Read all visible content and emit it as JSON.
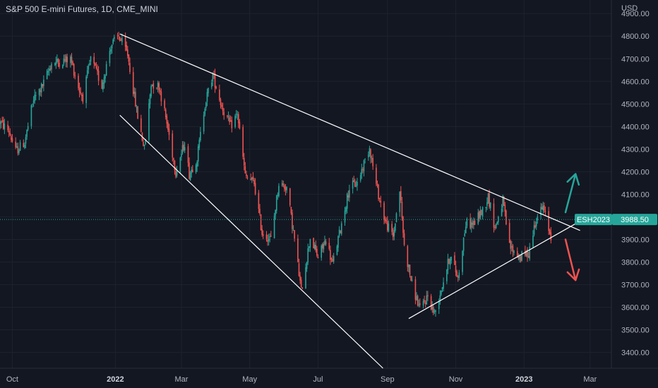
{
  "header": {
    "title": "S&P 500 E-mini Futures, 1D, CME_MINI"
  },
  "chart_data": {
    "type": "candlestick",
    "currency_label": "USD",
    "price_axis": {
      "ylim": [
        3330,
        4960
      ],
      "ticks": [
        "4900.00",
        "4800.00",
        "4700.00",
        "4600.00",
        "4500.00",
        "4400.00",
        "4300.00",
        "4200.00",
        "4100.00",
        "4000.00",
        "3900.00",
        "3800.00",
        "3700.00",
        "3600.00",
        "3500.00",
        "3400.00"
      ],
      "tick_values": [
        4900,
        4800,
        4700,
        4600,
        4500,
        4400,
        4300,
        4200,
        4100,
        4000,
        3900,
        3800,
        3700,
        3600,
        3500,
        3400
      ]
    },
    "time_axis": {
      "xlim": [
        "2021-09-20",
        "2023-03-20"
      ],
      "ticks": [
        {
          "label": "Oct",
          "date": "2021-10-01",
          "bold": false
        },
        {
          "label": "2022",
          "date": "2022-01-01",
          "bold": true
        },
        {
          "label": "Mar",
          "date": "2022-03-01",
          "bold": false
        },
        {
          "label": "May",
          "date": "2022-05-01",
          "bold": false
        },
        {
          "label": "Jul",
          "date": "2022-07-01",
          "bold": false
        },
        {
          "label": "Sep",
          "date": "2022-09-01",
          "bold": false
        },
        {
          "label": "Nov",
          "date": "2022-11-01",
          "bold": false
        },
        {
          "label": "2023",
          "date": "2023-01-01",
          "bold": true
        },
        {
          "label": "Mar",
          "date": "2023-03-01",
          "bold": false
        }
      ]
    },
    "price_series": [
      [
        "2021-09-20",
        4420
      ],
      [
        "2021-09-28",
        4380
      ],
      [
        "2021-10-04",
        4290
      ],
      [
        "2021-10-12",
        4330
      ],
      [
        "2021-10-20",
        4520
      ],
      [
        "2021-10-28",
        4580
      ],
      [
        "2021-11-05",
        4680
      ],
      [
        "2021-11-15",
        4690
      ],
      [
        "2021-11-22",
        4700
      ],
      [
        "2021-11-30",
        4560
      ],
      [
        "2021-12-03",
        4530
      ],
      [
        "2021-12-10",
        4700
      ],
      [
        "2021-12-20",
        4580
      ],
      [
        "2021-12-28",
        4760
      ],
      [
        "2022-01-04",
        4800
      ],
      [
        "2022-01-12",
        4720
      ],
      [
        "2022-01-20",
        4470
      ],
      [
        "2022-01-27",
        4300
      ],
      [
        "2022-02-02",
        4590
      ],
      [
        "2022-02-09",
        4580
      ],
      [
        "2022-02-15",
        4440
      ],
      [
        "2022-02-24",
        4200
      ],
      [
        "2022-03-04",
        4330
      ],
      [
        "2022-03-08",
        4190
      ],
      [
        "2022-03-15",
        4260
      ],
      [
        "2022-03-22",
        4500
      ],
      [
        "2022-03-29",
        4630
      ],
      [
        "2022-04-06",
        4490
      ],
      [
        "2022-04-14",
        4400
      ],
      [
        "2022-04-20",
        4460
      ],
      [
        "2022-04-27",
        4180
      ],
      [
        "2022-05-05",
        4150
      ],
      [
        "2022-05-12",
        3930
      ],
      [
        "2022-05-20",
        3900
      ],
      [
        "2022-05-27",
        4150
      ],
      [
        "2022-06-03",
        4130
      ],
      [
        "2022-06-10",
        3900
      ],
      [
        "2022-06-16",
        3670
      ],
      [
        "2022-06-24",
        3910
      ],
      [
        "2022-07-01",
        3820
      ],
      [
        "2022-07-08",
        3900
      ],
      [
        "2022-07-14",
        3790
      ],
      [
        "2022-07-22",
        3970
      ],
      [
        "2022-07-29",
        4130
      ],
      [
        "2022-08-05",
        4150
      ],
      [
        "2022-08-16",
        4310
      ],
      [
        "2022-08-22",
        4140
      ],
      [
        "2022-08-30",
        3980
      ],
      [
        "2022-09-06",
        3910
      ],
      [
        "2022-09-12",
        4120
      ],
      [
        "2022-09-16",
        3870
      ],
      [
        "2022-09-23",
        3700
      ],
      [
        "2022-09-30",
        3590
      ],
      [
        "2022-10-07",
        3650
      ],
      [
        "2022-10-13",
        3570
      ],
      [
        "2022-10-20",
        3700
      ],
      [
        "2022-10-27",
        3830
      ],
      [
        "2022-11-03",
        3730
      ],
      [
        "2022-11-10",
        3970
      ],
      [
        "2022-11-17",
        3970
      ],
      [
        "2022-11-25",
        4030
      ],
      [
        "2022-11-30",
        4090
      ],
      [
        "2022-12-06",
        3950
      ],
      [
        "2022-12-13",
        4070
      ],
      [
        "2022-12-19",
        3870
      ],
      [
        "2022-12-28",
        3820
      ],
      [
        "2023-01-05",
        3840
      ],
      [
        "2023-01-12",
        4000
      ],
      [
        "2023-01-18",
        4040
      ],
      [
        "2023-01-25",
        3910
      ]
    ],
    "last_price": {
      "symbol": "ESH2023",
      "value": 3988.5,
      "label": "3988.50"
    },
    "trendlines": [
      {
        "from": [
          "2022-01-05",
          4810
        ],
        "to": [
          "2023-02-20",
          3940
        ]
      },
      {
        "from": [
          "2022-01-05",
          4450
        ],
        "to": [
          "2022-08-28",
          3330
        ]
      },
      {
        "from": [
          "2022-09-20",
          3550
        ],
        "to": [
          "2023-02-16",
          3970
        ]
      }
    ],
    "arrows": [
      {
        "direction": "up",
        "color": "#26a69a",
        "from": [
          "2023-02-07",
          4020
        ],
        "to": [
          "2023-02-16",
          4190
        ]
      },
      {
        "direction": "down",
        "color": "#ef5350",
        "from": [
          "2023-02-07",
          3900
        ],
        "to": [
          "2023-02-16",
          3720
        ]
      }
    ],
    "grid": true,
    "colors": {
      "up": "#26a69a",
      "down": "#ef5350",
      "background": "#131722",
      "text": "#b2b5be",
      "grid": "#1e222d",
      "trendline": "#ffffff"
    }
  }
}
